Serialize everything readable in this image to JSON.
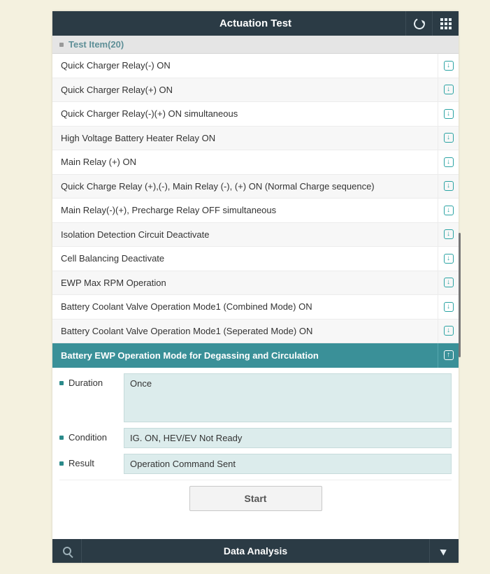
{
  "header": {
    "title": "Actuation Test"
  },
  "section": {
    "title": "Test Item(20)"
  },
  "items": [
    {
      "label": "Quick Charger Relay(-) ON"
    },
    {
      "label": "Quick Charger Relay(+) ON"
    },
    {
      "label": "Quick Charger Relay(-)(+) ON simultaneous"
    },
    {
      "label": "High Voltage Battery Heater Relay ON"
    },
    {
      "label": "Main Relay (+) ON"
    },
    {
      "label": "Quick Charge Relay (+),(-), Main Relay (-), (+) ON (Normal Charge sequence)"
    },
    {
      "label": "Main Relay(-)(+), Precharge Relay OFF simultaneous"
    },
    {
      "label": "Isolation Detection Circuit Deactivate"
    },
    {
      "label": "Cell Balancing Deactivate"
    },
    {
      "label": "EWP Max RPM Operation"
    },
    {
      "label": "Battery Coolant Valve Operation Mode1 (Combined Mode) ON"
    },
    {
      "label": "Battery Coolant Valve Operation Mode1 (Seperated Mode) ON"
    },
    {
      "label": "Battery EWP Operation Mode for Degassing and Circulation",
      "selected": true
    }
  ],
  "detail": {
    "duration_label": "Duration",
    "duration_value": "Once",
    "condition_label": "Condition",
    "condition_value": "IG. ON, HEV/EV Not Ready",
    "result_label": "Result",
    "result_value": "Operation Command Sent",
    "start_label": "Start"
  },
  "footer": {
    "title": "Data Analysis"
  },
  "colors": {
    "page_bg": "#f4f1df",
    "header_bg": "#2b3b45",
    "selected_bg": "#3a9098",
    "teal": "#2aa3a3",
    "field_bg": "#dcecec"
  }
}
